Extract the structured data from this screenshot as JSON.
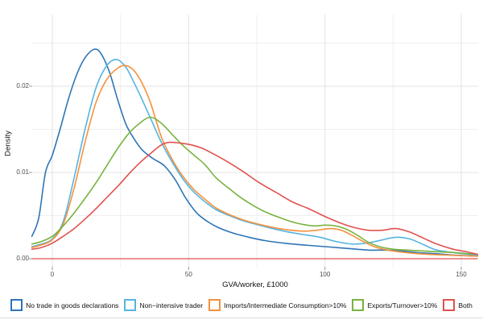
{
  "axes": {
    "x": {
      "title": "GVA/worker, £1000",
      "tick_labels": [
        "0",
        "50",
        "100",
        "150"
      ]
    },
    "y": {
      "title": "Density",
      "tick_labels": [
        "0.00",
        "0.01",
        "0.02"
      ]
    }
  },
  "chart_data": {
    "type": "line",
    "subtype": "kernel-density",
    "title": "",
    "xlabel": "GVA/worker, £1000",
    "ylabel": "Density",
    "xlim": [
      -7.5,
      156
    ],
    "ylim": [
      0,
      0.0283
    ],
    "x_ticks": [
      0,
      50,
      100,
      150
    ],
    "x_minor_ticks": [
      25,
      75,
      125
    ],
    "y_ticks": [
      0,
      0.01,
      0.02
    ],
    "y_minor_ticks": [
      0.005,
      0.015,
      0.025
    ],
    "grid": true,
    "legend_position": "bottom",
    "grid_major_color": "#e3e3e3",
    "grid_minor_color": "#efefef",
    "tick_mark_color": "#9a9a9a",
    "baseline": {
      "density": 0,
      "color": "#e0524f"
    },
    "series": [
      {
        "name": "No trade in goods declarations",
        "color": "#2e75b6",
        "points": [
          [
            -7.5,
            0.0026
          ],
          [
            -5,
            0.0047
          ],
          [
            -2.5,
            0.01
          ],
          [
            0,
            0.012
          ],
          [
            3,
            0.0152
          ],
          [
            6,
            0.0186
          ],
          [
            9,
            0.0214
          ],
          [
            12,
            0.0233
          ],
          [
            15.5,
            0.0243
          ],
          [
            18,
            0.0237
          ],
          [
            21,
            0.0216
          ],
          [
            24,
            0.0184
          ],
          [
            27,
            0.0156
          ],
          [
            30,
            0.0139
          ],
          [
            33,
            0.0126
          ],
          [
            37,
            0.0116
          ],
          [
            41,
            0.0108
          ],
          [
            45,
            0.0092
          ],
          [
            49,
            0.007
          ],
          [
            53,
            0.0053
          ],
          [
            57,
            0.0043
          ],
          [
            61,
            0.0036
          ],
          [
            66,
            0.003
          ],
          [
            72,
            0.0025
          ],
          [
            78,
            0.0021
          ],
          [
            85,
            0.0018
          ],
          [
            92,
            0.0016
          ],
          [
            100,
            0.0014
          ],
          [
            108,
            0.0012
          ],
          [
            116,
            0.001
          ],
          [
            122,
            0.001
          ],
          [
            128,
            0.0009
          ],
          [
            134,
            0.0007
          ],
          [
            140,
            0.0006
          ],
          [
            148,
            0.0004
          ],
          [
            156,
            0.0003
          ]
        ]
      },
      {
        "name": "Non−intensive trader",
        "color": "#56b4e2",
        "points": [
          [
            -7.5,
            0.0014
          ],
          [
            -4,
            0.0017
          ],
          [
            0,
            0.0023
          ],
          [
            4,
            0.0043
          ],
          [
            8,
            0.0094
          ],
          [
            12,
            0.015
          ],
          [
            16,
            0.0198
          ],
          [
            20,
            0.0224
          ],
          [
            23.5,
            0.0231
          ],
          [
            27,
            0.0222
          ],
          [
            30,
            0.0204
          ],
          [
            33,
            0.0184
          ],
          [
            36,
            0.0163
          ],
          [
            40,
            0.0135
          ],
          [
            44,
            0.0112
          ],
          [
            48,
            0.0092
          ],
          [
            52,
            0.0077
          ],
          [
            56,
            0.0066
          ],
          [
            60,
            0.0057
          ],
          [
            65,
            0.005
          ],
          [
            70,
            0.0044
          ],
          [
            77,
            0.0038
          ],
          [
            85,
            0.0032
          ],
          [
            92,
            0.0028
          ],
          [
            98,
            0.0025
          ],
          [
            104,
            0.002
          ],
          [
            110,
            0.0017
          ],
          [
            115,
            0.0018
          ],
          [
            120,
            0.0021
          ],
          [
            124,
            0.0024
          ],
          [
            127,
            0.0025
          ],
          [
            131,
            0.0023
          ],
          [
            135,
            0.0018
          ],
          [
            140,
            0.0011
          ],
          [
            145,
            0.0008
          ],
          [
            150,
            0.0006
          ],
          [
            156,
            0.0004
          ]
        ]
      },
      {
        "name": "Imports/Intermediate Consumption>10%",
        "color": "#f5913d",
        "points": [
          [
            -7.5,
            0.0013
          ],
          [
            -4,
            0.0016
          ],
          [
            0,
            0.0022
          ],
          [
            4,
            0.004
          ],
          [
            8,
            0.0082
          ],
          [
            12,
            0.0135
          ],
          [
            16,
            0.0181
          ],
          [
            20,
            0.0208
          ],
          [
            24,
            0.0221
          ],
          [
            27,
            0.0224
          ],
          [
            30,
            0.0218
          ],
          [
            33,
            0.0203
          ],
          [
            36,
            0.0181
          ],
          [
            40,
            0.0141
          ],
          [
            44,
            0.0115
          ],
          [
            48,
            0.0095
          ],
          [
            52,
            0.008
          ],
          [
            56,
            0.0069
          ],
          [
            60,
            0.0059
          ],
          [
            65,
            0.0051
          ],
          [
            70,
            0.0045
          ],
          [
            77,
            0.0039
          ],
          [
            85,
            0.0034
          ],
          [
            92,
            0.0032
          ],
          [
            97,
            0.0033
          ],
          [
            102,
            0.0035
          ],
          [
            106,
            0.0033
          ],
          [
            110,
            0.0027
          ],
          [
            114,
            0.002
          ],
          [
            118,
            0.0014
          ],
          [
            123,
            0.001
          ],
          [
            130,
            0.0007
          ],
          [
            138,
            0.0005
          ],
          [
            146,
            0.0004
          ],
          [
            156,
            0.0003
          ]
        ]
      },
      {
        "name": "Exports/Turnover>10%",
        "color": "#78b33e",
        "points": [
          [
            -7.5,
            0.0017
          ],
          [
            -4,
            0.002
          ],
          [
            0,
            0.0026
          ],
          [
            4,
            0.0038
          ],
          [
            8,
            0.0053
          ],
          [
            12,
            0.007
          ],
          [
            16,
            0.0088
          ],
          [
            20,
            0.0108
          ],
          [
            24,
            0.0128
          ],
          [
            28,
            0.0145
          ],
          [
            32,
            0.0157
          ],
          [
            36,
            0.0164
          ],
          [
            40,
            0.0157
          ],
          [
            44,
            0.0144
          ],
          [
            48,
            0.0131
          ],
          [
            52,
            0.012
          ],
          [
            56,
            0.0109
          ],
          [
            60,
            0.0094
          ],
          [
            65,
            0.0081
          ],
          [
            70,
            0.0069
          ],
          [
            77,
            0.0056
          ],
          [
            84,
            0.0047
          ],
          [
            90,
            0.0041
          ],
          [
            96,
            0.0038
          ],
          [
            100,
            0.0039
          ],
          [
            104,
            0.0038
          ],
          [
            108,
            0.0034
          ],
          [
            112,
            0.0027
          ],
          [
            116,
            0.0019
          ],
          [
            120,
            0.0014
          ],
          [
            125,
            0.0011
          ],
          [
            130,
            0.001
          ],
          [
            136,
            0.0009
          ],
          [
            142,
            0.0008
          ],
          [
            148,
            0.0007
          ],
          [
            156,
            0.0005
          ]
        ]
      },
      {
        "name": "Both",
        "color": "#e0524f",
        "points": [
          [
            -7.5,
            0.0011
          ],
          [
            -4,
            0.0013
          ],
          [
            0,
            0.0018
          ],
          [
            4,
            0.0026
          ],
          [
            8,
            0.0035
          ],
          [
            12,
            0.0046
          ],
          [
            16,
            0.0058
          ],
          [
            20,
            0.0071
          ],
          [
            24,
            0.0084
          ],
          [
            28,
            0.0098
          ],
          [
            32,
            0.0111
          ],
          [
            36,
            0.0122
          ],
          [
            40,
            0.0132
          ],
          [
            43,
            0.0135
          ],
          [
            47,
            0.0134
          ],
          [
            51,
            0.0132
          ],
          [
            55,
            0.0128
          ],
          [
            60,
            0.012
          ],
          [
            65,
            0.0111
          ],
          [
            70,
            0.0101
          ],
          [
            76,
            0.0088
          ],
          [
            82,
            0.0077
          ],
          [
            88,
            0.0066
          ],
          [
            94,
            0.0058
          ],
          [
            100,
            0.0049
          ],
          [
            106,
            0.0041
          ],
          [
            111,
            0.0036
          ],
          [
            116,
            0.0033
          ],
          [
            121,
            0.0033
          ],
          [
            126,
            0.0035
          ],
          [
            131,
            0.0031
          ],
          [
            136,
            0.0024
          ],
          [
            141,
            0.0017
          ],
          [
            147,
            0.0011
          ],
          [
            152,
            0.0008
          ],
          [
            156,
            0.0005
          ]
        ]
      }
    ]
  }
}
